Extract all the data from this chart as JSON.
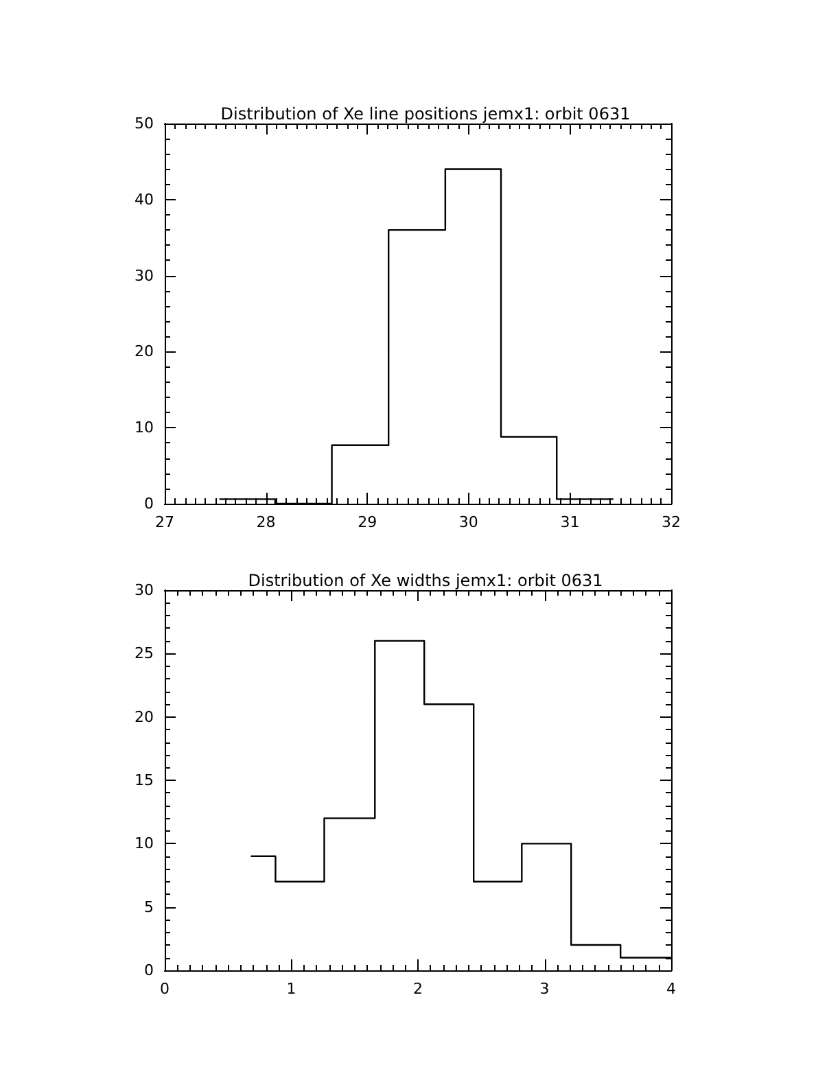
{
  "chart_data": [
    {
      "type": "histogram",
      "title": "Distribution of Xe line positions jemx1: orbit 0631",
      "bins": [
        27.54,
        28.09,
        28.65,
        29.21,
        29.77,
        30.32,
        30.87,
        31.43
      ],
      "values": [
        0.6,
        0,
        7.7,
        36,
        44,
        8.8,
        0.6
      ],
      "color": "#000000",
      "xlim": [
        27,
        32
      ],
      "xticks": [
        27,
        28,
        29,
        30,
        31,
        32
      ],
      "ylim": [
        0,
        50
      ],
      "yticks": [
        0,
        10,
        20,
        30,
        40,
        50
      ],
      "grid": false
    },
    {
      "type": "histogram",
      "title": "Distribution of Xe widths jemx1: orbit 0631",
      "bins": [
        0.68,
        0.875,
        1.26,
        1.66,
        2.05,
        2.44,
        2.82,
        3.21,
        3.6,
        4.0
      ],
      "values": [
        9,
        7,
        12,
        26,
        21,
        7,
        10,
        2,
        1
      ],
      "color": "#000000",
      "xlim": [
        0,
        4
      ],
      "xticks": [
        0,
        1,
        2,
        3,
        4
      ],
      "ylim": [
        0,
        30
      ],
      "yticks": [
        0,
        5,
        10,
        15,
        20,
        25,
        30
      ],
      "grid": false
    }
  ]
}
